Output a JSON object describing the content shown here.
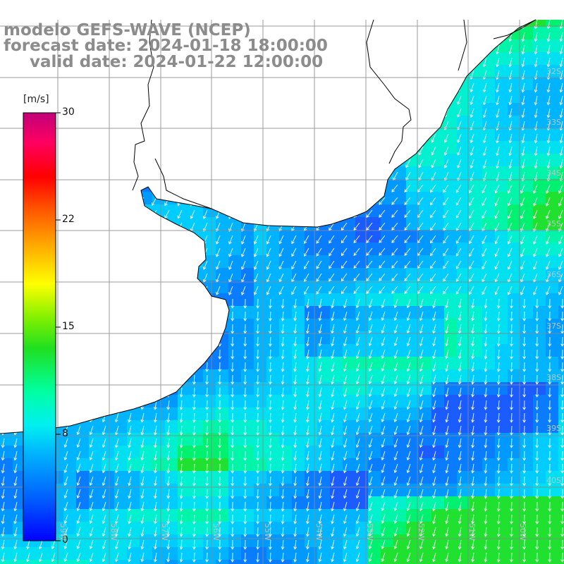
{
  "header": {
    "model_line": "modelo GEFS-WAVE (NCEP)",
    "forecast_line": "forecast date: 2024-01-18 18:00:00",
    "valid_line": "valid date: 2024-01-22 12:00:00"
  },
  "colorbar": {
    "unit": "[m/s]",
    "ticks": [
      "30",
      "22",
      "15",
      "8",
      "0"
    ],
    "stops": [
      "#0000ff",
      "#0066ff",
      "#00ccff",
      "#00ffcc",
      "#00ff66",
      "#33cc00",
      "#ccff00",
      "#ffff00",
      "#ffaa00",
      "#ff5500",
      "#ff0000",
      "#ff0066",
      "#cc0077"
    ]
  },
  "axes": {
    "lat_labels": [
      "32S",
      "33S",
      "34S",
      "35S",
      "36S",
      "37S",
      "38S",
      "39S",
      "40S"
    ],
    "lon_labels": [
      "59W",
      "58W",
      "57W",
      "56W",
      "55W",
      "54W",
      "53W",
      "52W",
      "51W",
      "50W"
    ]
  },
  "colors": {
    "land": "#ffffff",
    "coast": "#000000",
    "grid": "#808080",
    "arrow": "#ffffff",
    "title_text": "#8c8c8c"
  },
  "wind_field": {
    "description_units": "m/s",
    "arrow_direction": "mostly toward south-southwest"
  }
}
